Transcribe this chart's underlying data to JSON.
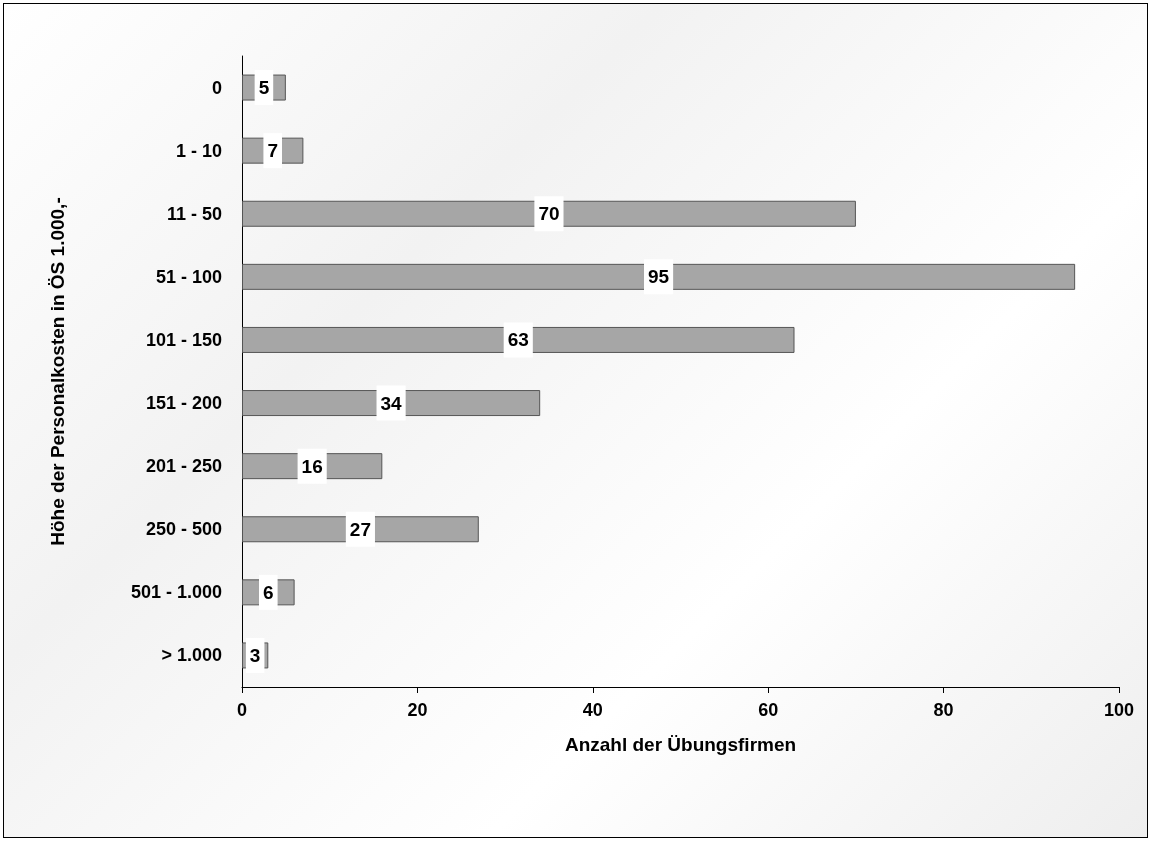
{
  "chart_data": {
    "type": "bar",
    "orientation": "horizontal",
    "xlabel": "Anzahl der Übungsfirmen",
    "ylabel": "Höhe der Personalkosten in ÖS 1.000,-",
    "categories": [
      "0",
      "1 - 10",
      "11 - 50",
      "51 - 100",
      "101 - 150",
      "151 - 200",
      "201 - 250",
      "250 - 500",
      "501 - 1.000",
      "> 1.000"
    ],
    "values": [
      5,
      7,
      70,
      95,
      63,
      34,
      16,
      27,
      6,
      3
    ],
    "color": "#a6a6a6",
    "xlim": [
      0,
      100
    ],
    "xticks": [
      0,
      20,
      40,
      60,
      80,
      100
    ],
    "data_labels": true,
    "grid": false
  }
}
